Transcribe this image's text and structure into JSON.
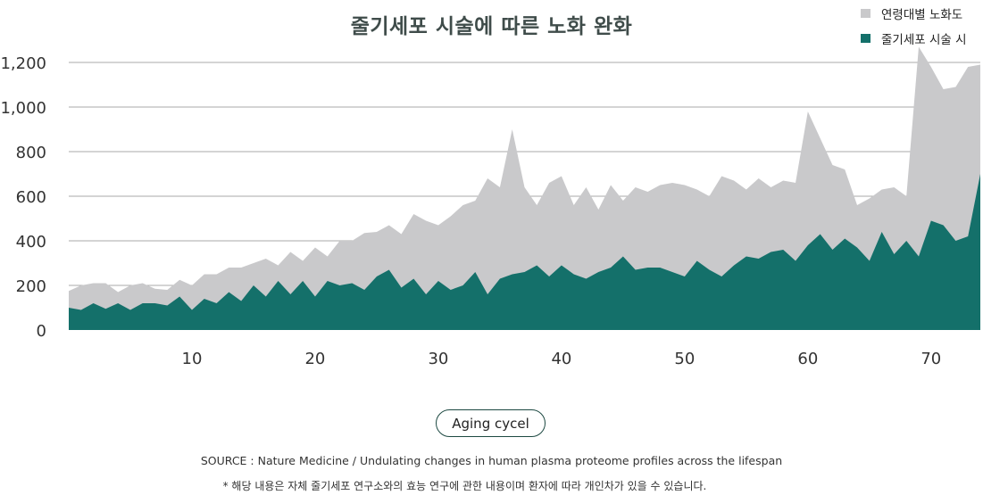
{
  "chart_data": {
    "type": "area",
    "title": "줄기세포 시술에 따른 노화 완화",
    "xlabel": "Aging cycel",
    "ylabel": "",
    "xlim": [
      0,
      74
    ],
    "ylim": [
      0,
      1300
    ],
    "x_ticks": [
      "10",
      "20",
      "30",
      "40",
      "50",
      "60",
      "70"
    ],
    "y_ticks": [
      "0",
      "200",
      "400",
      "600",
      "800",
      "1,000",
      "1,200"
    ],
    "grid": "horizontal",
    "legend_position": "top-right",
    "series": [
      {
        "name": "연령대별 노화도",
        "color": "#c9c9cb",
        "points": [
          [
            0,
            175
          ],
          [
            1,
            200
          ],
          [
            2,
            210
          ],
          [
            3,
            210
          ],
          [
            4,
            170
          ],
          [
            5,
            200
          ],
          [
            6,
            210
          ],
          [
            7,
            185
          ],
          [
            8,
            180
          ],
          [
            9,
            225
          ],
          [
            10,
            200
          ],
          [
            11,
            250
          ],
          [
            12,
            250
          ],
          [
            13,
            280
          ],
          [
            14,
            280
          ],
          [
            15,
            300
          ],
          [
            16,
            320
          ],
          [
            17,
            290
          ],
          [
            18,
            350
          ],
          [
            19,
            310
          ],
          [
            20,
            370
          ],
          [
            21,
            330
          ],
          [
            22,
            400
          ],
          [
            23,
            400
          ],
          [
            24,
            435
          ],
          [
            25,
            440
          ],
          [
            26,
            470
          ],
          [
            27,
            430
          ],
          [
            28,
            520
          ],
          [
            29,
            490
          ],
          [
            30,
            470
          ],
          [
            31,
            510
          ],
          [
            32,
            560
          ],
          [
            33,
            580
          ],
          [
            34,
            680
          ],
          [
            35,
            640
          ],
          [
            36,
            900
          ],
          [
            37,
            640
          ],
          [
            38,
            560
          ],
          [
            39,
            660
          ],
          [
            40,
            690
          ],
          [
            41,
            560
          ],
          [
            42,
            640
          ],
          [
            43,
            540
          ],
          [
            44,
            650
          ],
          [
            45,
            580
          ],
          [
            46,
            640
          ],
          [
            47,
            620
          ],
          [
            48,
            650
          ],
          [
            49,
            660
          ],
          [
            50,
            650
          ],
          [
            51,
            630
          ],
          [
            52,
            600
          ],
          [
            53,
            690
          ],
          [
            54,
            670
          ],
          [
            55,
            630
          ],
          [
            56,
            680
          ],
          [
            57,
            640
          ],
          [
            58,
            670
          ],
          [
            59,
            660
          ],
          [
            60,
            980
          ],
          [
            61,
            860
          ],
          [
            62,
            740
          ],
          [
            63,
            720
          ],
          [
            64,
            560
          ],
          [
            65,
            590
          ],
          [
            66,
            630
          ],
          [
            67,
            640
          ],
          [
            68,
            600
          ],
          [
            69,
            1270
          ],
          [
            70,
            1180
          ],
          [
            71,
            1080
          ],
          [
            72,
            1090
          ],
          [
            73,
            1180
          ],
          [
            74,
            1190
          ]
        ]
      },
      {
        "name": "줄기세포 시술 시",
        "color": "#14706a",
        "points": [
          [
            0,
            100
          ],
          [
            1,
            90
          ],
          [
            2,
            120
          ],
          [
            3,
            95
          ],
          [
            4,
            120
          ],
          [
            5,
            90
          ],
          [
            6,
            120
          ],
          [
            7,
            120
          ],
          [
            8,
            110
          ],
          [
            9,
            150
          ],
          [
            10,
            90
          ],
          [
            11,
            140
          ],
          [
            12,
            120
          ],
          [
            13,
            170
          ],
          [
            14,
            130
          ],
          [
            15,
            200
          ],
          [
            16,
            150
          ],
          [
            17,
            220
          ],
          [
            18,
            160
          ],
          [
            19,
            220
          ],
          [
            20,
            150
          ],
          [
            21,
            220
          ],
          [
            22,
            200
          ],
          [
            23,
            210
          ],
          [
            24,
            180
          ],
          [
            25,
            240
          ],
          [
            26,
            270
          ],
          [
            27,
            190
          ],
          [
            28,
            230
          ],
          [
            29,
            160
          ],
          [
            30,
            220
          ],
          [
            31,
            180
          ],
          [
            32,
            200
          ],
          [
            33,
            260
          ],
          [
            34,
            160
          ],
          [
            35,
            230
          ],
          [
            36,
            250
          ],
          [
            37,
            260
          ],
          [
            38,
            290
          ],
          [
            39,
            240
          ],
          [
            40,
            290
          ],
          [
            41,
            250
          ],
          [
            42,
            230
          ],
          [
            43,
            260
          ],
          [
            44,
            280
          ],
          [
            45,
            330
          ],
          [
            46,
            270
          ],
          [
            47,
            280
          ],
          [
            48,
            280
          ],
          [
            49,
            260
          ],
          [
            50,
            240
          ],
          [
            51,
            310
          ],
          [
            52,
            270
          ],
          [
            53,
            240
          ],
          [
            54,
            290
          ],
          [
            55,
            330
          ],
          [
            56,
            320
          ],
          [
            57,
            350
          ],
          [
            58,
            360
          ],
          [
            59,
            310
          ],
          [
            60,
            380
          ],
          [
            61,
            430
          ],
          [
            62,
            360
          ],
          [
            63,
            410
          ],
          [
            64,
            370
          ],
          [
            65,
            310
          ],
          [
            66,
            440
          ],
          [
            67,
            340
          ],
          [
            68,
            400
          ],
          [
            69,
            330
          ],
          [
            70,
            490
          ],
          [
            71,
            470
          ],
          [
            72,
            400
          ],
          [
            73,
            420
          ],
          [
            74,
            700
          ]
        ]
      }
    ],
    "annotations": [
      "SOURCE : Nature Medicine / Undulating changes in human plasma proteome profiles across the lifespan",
      "* 해당 내용은 자체 줄기세포 연구소와의 효능 연구에 관한 내용이며 환자에 따라 개인차가 있을 수 있습니다."
    ]
  },
  "legend": {
    "items": [
      {
        "label": "연령대별 노화도",
        "color": "#c9c9cb"
      },
      {
        "label": "줄기세포 시술 시",
        "color": "#14706a"
      }
    ]
  }
}
